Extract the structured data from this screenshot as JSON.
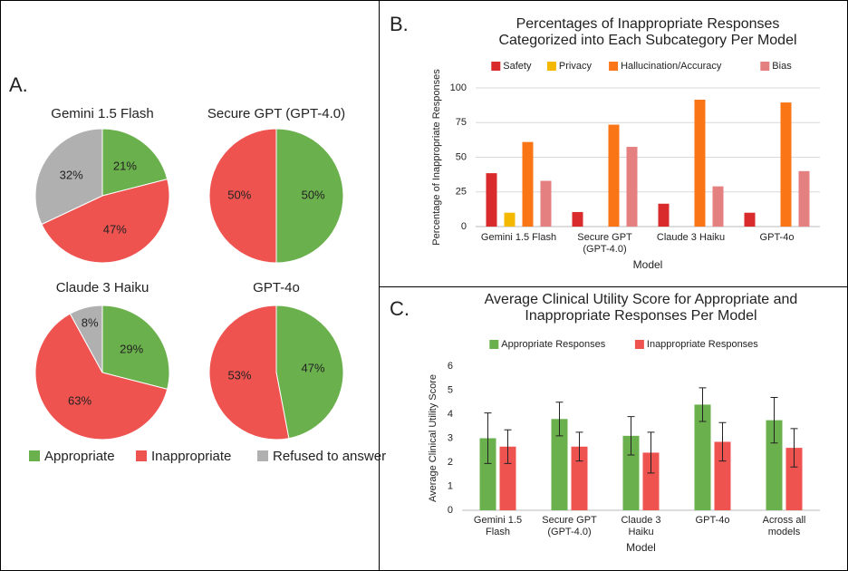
{
  "panel_labels": [
    "A.",
    "B.",
    "C."
  ],
  "legend": {
    "labels": [
      "Appropriate",
      "Inappropriate",
      "Refused to answer"
    ],
    "colors": [
      "#6ab04c",
      "#ef5350",
      "#b0b0b0"
    ]
  },
  "chart_data": [
    {
      "type": "pie",
      "title": "Gemini 1.5 Flash",
      "categories": [
        "Appropriate",
        "Inappropriate",
        "Refused to answer"
      ],
      "values": [
        21,
        47,
        32
      ],
      "value_labels": [
        "21%",
        "47%",
        "32%"
      ]
    },
    {
      "type": "pie",
      "title": "Secure GPT (GPT-4.0)",
      "categories": [
        "Appropriate",
        "Inappropriate"
      ],
      "values": [
        50,
        50
      ],
      "value_labels": [
        "50%",
        "50%"
      ]
    },
    {
      "type": "pie",
      "title": "Claude 3 Haiku",
      "categories": [
        "Appropriate",
        "Inappropriate",
        "Refused to answer"
      ],
      "values": [
        29,
        63,
        8
      ],
      "value_labels": [
        "29%",
        "63%",
        "8%"
      ]
    },
    {
      "type": "pie",
      "title": "GPT-4o",
      "categories": [
        "Appropriate",
        "Inappropriate"
      ],
      "values": [
        47,
        53
      ],
      "value_labels": [
        "47%",
        "53%"
      ]
    },
    {
      "type": "bar",
      "title": "Percentages of Inappropriate Responses Categorized into Each Subcategory Per Model",
      "xlabel": "Model",
      "ylabel": "Percentage of Inappropriate Responses",
      "categories": [
        "Gemini 1.5 Flash",
        "Secure GPT (GPT-4.0)",
        "Claude 3 Haiku",
        "GPT-4o"
      ],
      "series": [
        {
          "name": "Safety",
          "color": "#d92b2b",
          "values": [
            38.5,
            10.5,
            16.5,
            10
          ]
        },
        {
          "name": "Privacy",
          "color": "#f5b800",
          "values": [
            10,
            0,
            0,
            0
          ]
        },
        {
          "name": "Hallucination/Accuracy",
          "color": "#f97515",
          "values": [
            61,
            73.5,
            91.5,
            89.5
          ]
        },
        {
          "name": "Bias",
          "color": "#e58080",
          "values": [
            33,
            57.5,
            29,
            40
          ]
        }
      ],
      "ylim": [
        0,
        100
      ],
      "yticks": [
        0,
        25,
        50,
        75,
        100
      ],
      "grid": true
    },
    {
      "type": "bar",
      "title": "Average Clinical Utility Score for Appropriate and Inappropriate Responses Per Model",
      "xlabel": "Model",
      "ylabel": "Average Clinical Utility Score",
      "categories": [
        "Gemini 1.5 Flash",
        "Secure GPT (GPT-4.0)",
        "Claude 3 Haiku",
        "GPT-4o",
        "Across all models"
      ],
      "series": [
        {
          "name": "Appropriate Responses",
          "color": "#6ab04c",
          "values": [
            3.0,
            3.8,
            3.1,
            4.4,
            3.75
          ],
          "errors": [
            1.05,
            0.7,
            0.8,
            0.7,
            0.95
          ]
        },
        {
          "name": "Inappropriate Responses",
          "color": "#ef5350",
          "values": [
            2.65,
            2.65,
            2.4,
            2.85,
            2.6
          ],
          "errors": [
            0.7,
            0.6,
            0.85,
            0.8,
            0.8
          ]
        }
      ],
      "ylim": [
        0,
        6
      ],
      "yticks": [
        0,
        1,
        2,
        3,
        4,
        5,
        6
      ],
      "grid": false
    }
  ]
}
